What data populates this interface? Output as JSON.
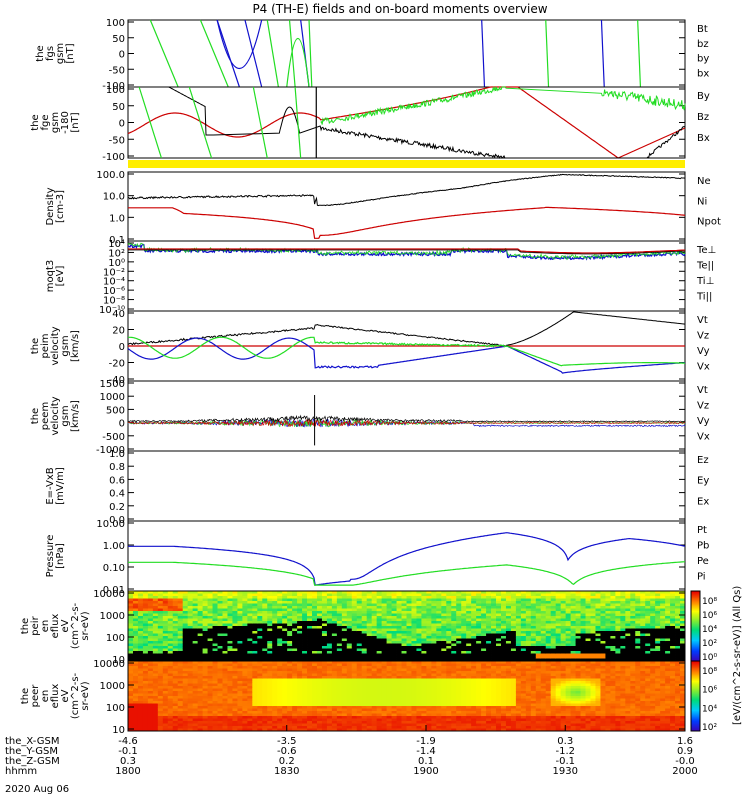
{
  "title": "P4 (TH-E) fields and on-board moments overview",
  "date_label": "2020 Aug 06",
  "colors": {
    "black": "#000000",
    "red": "#cc0000",
    "green": "#22dd22",
    "blue": "#1111cc",
    "yellow": "#ffee00"
  },
  "chart_data": [
    {
      "type": "line",
      "panel": "fgs",
      "ylabel": [
        "the",
        "fgs",
        "gsm",
        "[nT]"
      ],
      "yticks": [
        "100",
        "50",
        "0",
        "-50",
        "-100"
      ],
      "ylim": [
        -100,
        100
      ],
      "legend": [
        {
          "name": "Bt",
          "color": "#000000"
        },
        {
          "name": "bz",
          "color": "#cc0000"
        },
        {
          "name": "by",
          "color": "#22dd22"
        },
        {
          "name": "bx",
          "color": "#1111cc"
        }
      ]
    },
    {
      "type": "line",
      "panel": "fge",
      "ylabel": [
        "the",
        "fge",
        "gsm",
        "-180",
        "[nT]"
      ],
      "yticks": [
        "100",
        "50",
        "0",
        "-50",
        "-100"
      ],
      "ylim": [
        -120,
        100
      ],
      "legend": [
        {
          "name": "By",
          "color": "#22dd22"
        },
        {
          "name": "Bz",
          "color": "#cc0000"
        },
        {
          "name": "Bx",
          "color": "#000000"
        }
      ]
    },
    {
      "type": "line",
      "panel": "density",
      "log": true,
      "ylabel": [
        "Density",
        "[cm-3]"
      ],
      "yticks": [
        "100.0",
        "10.0",
        "1.0",
        "0.1"
      ],
      "ylim": [
        0.05,
        250
      ],
      "legend": [
        {
          "name": "Ne",
          "color": "#cc0000"
        },
        {
          "name": "Ni",
          "color": "#000000"
        },
        {
          "name": "Npot",
          "color": "#1111cc"
        }
      ]
    },
    {
      "type": "line",
      "panel": "temperature",
      "log": true,
      "ylabel": [
        "moqt3",
        "[eV]"
      ],
      "yticks": [
        "10⁴",
        "10²",
        "10⁰",
        "10⁻²",
        "10⁻⁴",
        "10⁻⁶",
        "10⁻⁸",
        "10⁻¹⁰"
      ],
      "ylim": [
        1e-10,
        10000.0
      ],
      "legend": [
        {
          "name": "Te⊥",
          "color": "#cc0000"
        },
        {
          "name": "Te||",
          "color": "#000000"
        },
        {
          "name": "Ti⊥",
          "color": "#22dd22"
        },
        {
          "name": "Ti||",
          "color": "#22dd22"
        }
      ]
    },
    {
      "type": "line",
      "panel": "peim_velocity",
      "ylabel": [
        "the",
        "peim",
        "velocity",
        "gsm",
        "[km/s]"
      ],
      "yticks": [
        "40",
        "20",
        "0",
        "-20",
        "-40"
      ],
      "ylim": [
        -40,
        40
      ],
      "legend": [
        {
          "name": "Vt",
          "color": "#000000"
        },
        {
          "name": "Vz",
          "color": "#cc0000"
        },
        {
          "name": "Vy",
          "color": "#22dd22"
        },
        {
          "name": "Vx",
          "color": "#1111cc"
        }
      ]
    },
    {
      "type": "line",
      "panel": "peem_velocity",
      "ylabel": [
        "the",
        "peem",
        "velocity",
        "gsm",
        "[km/s]"
      ],
      "yticks": [
        "1500",
        "1000",
        "500",
        "0",
        "-500",
        "-1000"
      ],
      "ylim": [
        -1000,
        1500
      ],
      "legend": [
        {
          "name": "Vt",
          "color": "#000000"
        },
        {
          "name": "Vz",
          "color": "#cc0000"
        },
        {
          "name": "Vy",
          "color": "#22dd22"
        },
        {
          "name": "Vx",
          "color": "#1111cc"
        }
      ]
    },
    {
      "type": "line",
      "panel": "efield",
      "ylabel": [
        "E=-VxB",
        "[mV/m]"
      ],
      "yticks": [
        "1.0",
        "0.8",
        "0.6",
        "0.4",
        "0.2",
        "0.0"
      ],
      "ylim": [
        0,
        1
      ],
      "legend": [
        {
          "name": "Ez",
          "color": "#cc0000"
        },
        {
          "name": "Ey",
          "color": "#22dd22"
        },
        {
          "name": "Ex",
          "color": "#1111cc"
        }
      ]
    },
    {
      "type": "line",
      "panel": "pressure",
      "log": true,
      "ylabel": [
        "Pressure",
        "[nPa]"
      ],
      "yticks": [
        "10.00",
        "1.00",
        "0.10",
        "0.01"
      ],
      "ylim": [
        0.005,
        20
      ],
      "legend": [
        {
          "name": "Pt",
          "color": "#000000"
        },
        {
          "name": "Pb",
          "color": "#cc0000"
        },
        {
          "name": "Pe",
          "color": "#22dd22"
        },
        {
          "name": "Pi",
          "color": "#1111cc"
        }
      ]
    },
    {
      "type": "heatmap",
      "panel": "peir_eflux",
      "ylabel": [
        "the",
        "peir",
        "en",
        "eflux",
        "eV",
        "(cm^2-s-",
        "sr-eV)"
      ],
      "yticks": [
        "10000",
        "1000",
        "100",
        "10"
      ],
      "colorbar_label": "[eV/(cm^2-s-sr-eV)] (All Qs)",
      "colorbar_ticks": [
        "10⁸",
        "10⁶",
        "10⁴",
        "10²",
        "10⁰"
      ]
    },
    {
      "type": "heatmap",
      "panel": "peer_eflux",
      "ylabel": [
        "the",
        "peer",
        "en",
        "eflux",
        "eV",
        "(cm^2-s-",
        "sr-eV)"
      ],
      "yticks": [
        "10000",
        "1000",
        "100",
        "10"
      ],
      "colorbar_label": "[eV/(cm^2-s-sr-eV)]",
      "colorbar_ticks": [
        "10⁸",
        "10⁶",
        "10⁴",
        "10²"
      ]
    }
  ],
  "x_axis": {
    "rows": [
      {
        "name": "the_X-GSM",
        "values": [
          "-4.6",
          "-3.5",
          "-1.9",
          "0.3",
          "1.6"
        ]
      },
      {
        "name": "the_Y-GSM",
        "values": [
          "-0.1",
          "-0.6",
          "-1.4",
          "-1.2",
          "0.9"
        ]
      },
      {
        "name": "the_Z-GSM",
        "values": [
          "0.3",
          "0.2",
          "0.1",
          "-0.1",
          "-0.0"
        ]
      },
      {
        "name": "hhmm",
        "values": [
          "1800",
          "1830",
          "1900",
          "1930",
          "2000"
        ]
      }
    ]
  }
}
